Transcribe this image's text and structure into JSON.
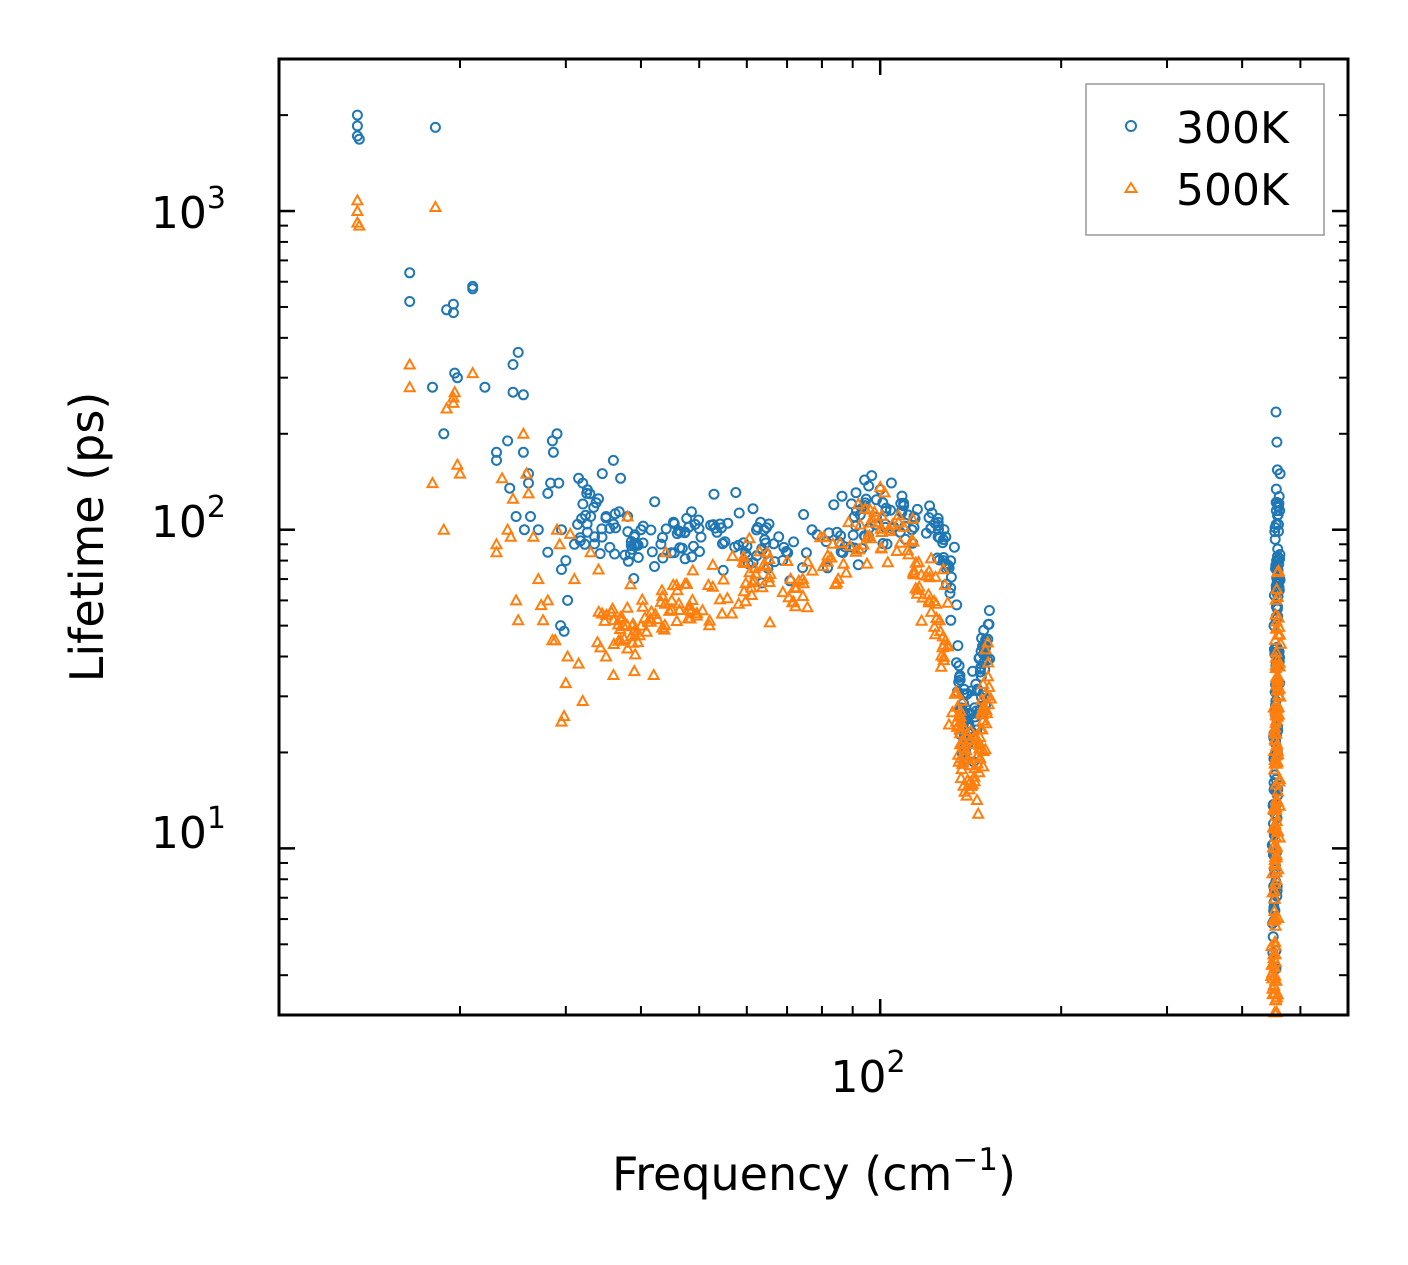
{
  "chart_data": {
    "type": "scatter",
    "xscale": "log",
    "yscale": "log",
    "xlim": [
      10,
      600
    ],
    "ylim": [
      3,
      3000
    ],
    "xlabel": "Frequency (cm",
    "xlabel_sup": "−1",
    "xlabel_end": ")",
    "ylabel": "Lifetime (ps)",
    "x_major_ticks": [
      {
        "value": 100,
        "base": "10",
        "exp": "2"
      }
    ],
    "y_major_ticks": [
      {
        "value": 10,
        "base": "10",
        "exp": "1"
      },
      {
        "value": 100,
        "base": "10",
        "exp": "2"
      },
      {
        "value": 1000,
        "base": "10",
        "exp": "3"
      }
    ],
    "legend_position": "top-right",
    "series": [
      {
        "name": "300K",
        "color": "#1f77b4",
        "marker": "circle",
        "points": [
          [
            13.5,
            2000
          ],
          [
            13.5,
            1850
          ],
          [
            13.5,
            1720
          ],
          [
            13.6,
            1680
          ],
          [
            18.2,
            1830
          ],
          [
            16.5,
            640
          ],
          [
            16.5,
            520
          ],
          [
            19.0,
            490
          ],
          [
            19.5,
            480
          ],
          [
            19.5,
            510
          ],
          [
            19.6,
            310
          ],
          [
            19.8,
            300
          ],
          [
            21.0,
            580
          ],
          [
            21.0,
            570
          ],
          [
            22.0,
            280
          ],
          [
            18.0,
            280
          ],
          [
            18.8,
            200
          ],
          [
            23.0,
            175
          ],
          [
            23.0,
            165
          ],
          [
            24.0,
            190
          ],
          [
            24.5,
            330
          ],
          [
            24.5,
            270
          ],
          [
            25.0,
            360
          ],
          [
            25.5,
            265
          ],
          [
            25.5,
            175
          ],
          [
            26.0,
            150
          ],
          [
            26.0,
            140
          ],
          [
            24.2,
            135
          ],
          [
            24.8,
            110
          ],
          [
            25.6,
            100
          ],
          [
            26.2,
            110
          ],
          [
            27.0,
            100
          ],
          [
            28.0,
            85
          ],
          [
            28.0,
            130
          ],
          [
            28.3,
            140
          ],
          [
            28.5,
            190
          ],
          [
            28.6,
            175
          ],
          [
            29.0,
            200
          ],
          [
            29.2,
            140
          ],
          [
            29.5,
            100
          ],
          [
            29.5,
            75
          ],
          [
            30.0,
            80
          ],
          [
            30.2,
            60
          ],
          [
            29.4,
            50
          ],
          [
            29.8,
            48
          ],
          [
            31.0,
            90
          ],
          [
            31.5,
            145
          ],
          [
            32.0,
            140
          ],
          [
            32.5,
            130
          ],
          [
            33.0,
            110
          ],
          [
            33.5,
            95
          ],
          [
            34.0,
            125
          ],
          [
            34.5,
            150
          ],
          [
            35.0,
            110
          ],
          [
            35.5,
            88
          ],
          [
            36.0,
            165
          ],
          [
            37.0,
            145
          ],
          [
            38.0,
            110
          ],
          [
            39.0,
            95
          ],
          [
            40.0,
            100
          ]
        ],
        "curves": [
          {
            "x": [
              32,
              34,
              36,
              38,
              40,
              42,
              44,
              46,
              48,
              50,
              53,
              56,
              60,
              63,
              66,
              70,
              75,
              80,
              85,
              90,
              95,
              100,
              105,
              110,
              115,
              120,
              125,
              128,
              131,
              134
            ],
            "y": [
              110,
              100,
              95,
              92,
              90,
              88,
              87,
              90,
              93,
              97,
              99,
              96,
              92,
              88,
              86,
              84,
              86,
              90,
              96,
              102,
              108,
              112,
              115,
              114,
              110,
              104,
              95,
              85,
              70,
              50
            ],
            "count": 220,
            "spread_x": 0.01,
            "spread_y": 0.09
          },
          {
            "x": [
              134,
              137,
              140,
              143,
              146,
              149,
              152
            ],
            "y": [
              40,
              28,
              24,
              27,
              32,
              40,
              48
            ],
            "count": 80,
            "spread_x": 0.006,
            "spread_y": 0.12
          },
          {
            "x": [
              452,
              452,
              453,
              454,
              455,
              456,
              457,
              458,
              459
            ],
            "y": [
              6,
              8,
              12,
              17,
              25,
              40,
              60,
              85,
              110
            ],
            "count": 150,
            "spread_x": 0.004,
            "spread_y": 0.22
          }
        ]
      },
      {
        "name": "500K",
        "color": "#ff7f0e",
        "marker": "triangle",
        "points": [
          [
            13.5,
            1080
          ],
          [
            13.5,
            1000
          ],
          [
            13.5,
            920
          ],
          [
            13.6,
            900
          ],
          [
            18.2,
            1030
          ],
          [
            16.5,
            330
          ],
          [
            16.5,
            280
          ],
          [
            19.5,
            260
          ],
          [
            19.5,
            250
          ],
          [
            19.6,
            270
          ],
          [
            19.8,
            160
          ],
          [
            20.0,
            150
          ],
          [
            21.0,
            310
          ],
          [
            19.0,
            240
          ],
          [
            18.0,
            140
          ],
          [
            18.8,
            100
          ],
          [
            23.0,
            90
          ],
          [
            23.0,
            85
          ],
          [
            23.5,
            145
          ],
          [
            24.0,
            100
          ],
          [
            24.3,
            95
          ],
          [
            24.5,
            125
          ],
          [
            24.8,
            60
          ],
          [
            25.0,
            52
          ],
          [
            25.5,
            200
          ],
          [
            25.8,
            150
          ],
          [
            26.0,
            130
          ],
          [
            26.5,
            95
          ],
          [
            27.0,
            70
          ],
          [
            27.3,
            58
          ],
          [
            27.5,
            52
          ],
          [
            28.0,
            60
          ],
          [
            28.5,
            45
          ],
          [
            28.8,
            45
          ],
          [
            29.0,
            100
          ],
          [
            29.3,
            90
          ],
          [
            29.5,
            25
          ],
          [
            29.8,
            26
          ],
          [
            30.0,
            33
          ],
          [
            30.2,
            40
          ],
          [
            30.5,
            97
          ],
          [
            31.0,
            70
          ],
          [
            31.5,
            38
          ],
          [
            32.0,
            29
          ],
          [
            33.0,
            85
          ],
          [
            34.0,
            75
          ],
          [
            35.0,
            40
          ],
          [
            36.0,
            35
          ],
          [
            37.0,
            45
          ],
          [
            38.0,
            110
          ],
          [
            39.0,
            36
          ],
          [
            40.0,
            50
          ],
          [
            42.0,
            35
          ],
          [
            44.0,
            85
          ],
          [
            45.0,
            60
          ]
        ],
        "curves": [
          {
            "x": [
              34,
              36,
              38,
              40,
              42,
              44,
              46,
              48,
              50,
              53,
              56,
              60,
              63,
              66,
              70,
              75,
              80,
              85,
              90,
              95,
              100,
              105,
              110,
              115,
              120,
              125,
              128,
              131,
              134
            ],
            "y": [
              46,
              48,
              50,
              52,
              55,
              58,
              60,
              62,
              64,
              66,
              68,
              70,
              70,
              68,
              67,
              70,
              75,
              82,
              90,
              98,
              105,
              100,
              90,
              78,
              65,
              55,
              45,
              35,
              28
            ],
            "count": 220,
            "spread_x": 0.01,
            "spread_y": 0.1
          },
          {
            "x": [
              134,
              137,
              140,
              143,
              146,
              149,
              152
            ],
            "y": [
              25,
              20,
              17,
              18,
              22,
              28,
              36
            ],
            "count": 80,
            "spread_x": 0.006,
            "spread_y": 0.12
          },
          {
            "x": [
              452,
              452,
              453,
              454,
              455,
              456,
              457,
              458,
              459
            ],
            "y": [
              3.3,
              4.5,
              6,
              8,
              12,
              17,
              25,
              35,
              50
            ],
            "count": 150,
            "spread_x": 0.004,
            "spread_y": 0.22
          }
        ]
      }
    ]
  }
}
